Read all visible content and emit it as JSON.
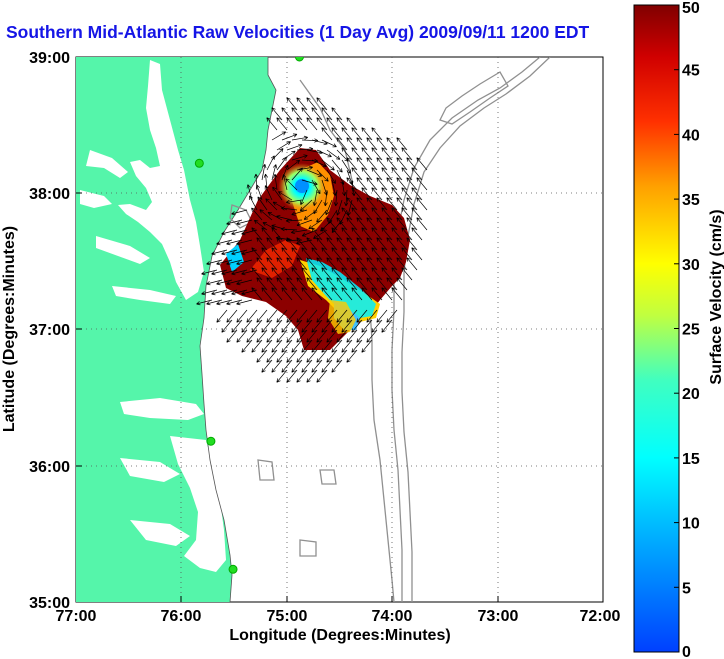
{
  "title": "Southern Mid-Atlantic Raw Velocities (1 Day Avg) 2009/09/11 1200 EDT",
  "map": {
    "xlabel": "Longitude (Degrees:Minutes)",
    "ylabel": "Latitude (Degrees:Minutes)",
    "x_ticks": [
      "77:00",
      "76:00",
      "75:00",
      "74:00",
      "73:00",
      "72:00"
    ],
    "y_ticks": [
      "39:00",
      "38:00",
      "37:00",
      "36:00",
      "35:00"
    ],
    "xlim": [
      -77,
      -72
    ],
    "ylim": [
      35,
      39
    ],
    "land_color": "#55f5aa",
    "ocean_color": "#ffffff",
    "bathymetry_color": "#909090",
    "station_color": "#22dd22"
  },
  "stations": [
    {
      "lon": -74.88,
      "lat": 39.0
    },
    {
      "lon": -75.83,
      "lat": 38.22
    },
    {
      "lon": -75.72,
      "lat": 36.18
    },
    {
      "lon": -75.51,
      "lat": 35.24
    }
  ],
  "colorbar": {
    "label": "Surface Velocity (cm/s)",
    "ticks": [
      "0",
      "5",
      "10",
      "15",
      "20",
      "25",
      "30",
      "35",
      "40",
      "45",
      "50"
    ],
    "min": 0,
    "max": 50,
    "colormap": "jet"
  },
  "chart_data": {
    "type": "heatmap",
    "title": "Southern Mid-Atlantic Raw Velocities (1 Day Avg) 2009/09/11 1200 EDT",
    "xlabel": "Longitude (Degrees:Minutes)",
    "ylabel": "Latitude (Degrees:Minutes)",
    "xlim": [
      -77,
      -72
    ],
    "ylim": [
      35,
      39
    ],
    "color_range": [
      0,
      50
    ],
    "units": "cm/s",
    "speed_features": [
      {
        "kind": "slow eddy core",
        "lon": -74.88,
        "lat": 38.02,
        "speed": 5
      },
      {
        "kind": "slow band",
        "lon": -74.6,
        "lat": 37.2,
        "speed": 10
      },
      {
        "kind": "slow inshore patch",
        "lon": -75.45,
        "lat": 37.52,
        "speed": 15
      },
      {
        "kind": "fast background",
        "lon": -74.7,
        "lat": 37.55,
        "speed": 50
      }
    ]
  }
}
